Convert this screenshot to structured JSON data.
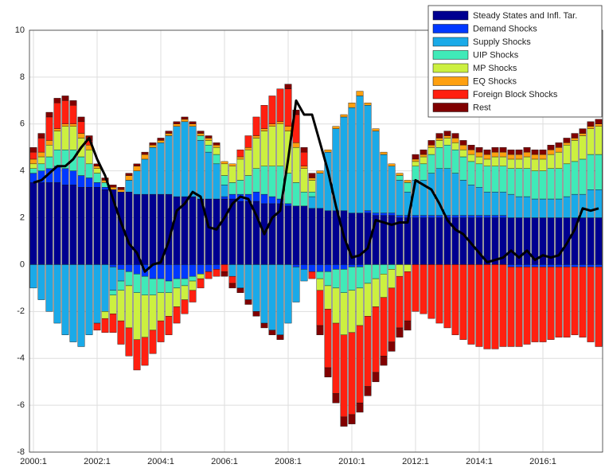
{
  "chart_data": {
    "type": "bar",
    "stacked": true,
    "categories": [
      "2000:1",
      null,
      null,
      null,
      null,
      null,
      null,
      null,
      "2002:1",
      null,
      null,
      null,
      null,
      null,
      null,
      null,
      "2004:1",
      null,
      null,
      null,
      null,
      null,
      null,
      null,
      "2006:1",
      null,
      null,
      null,
      null,
      null,
      null,
      null,
      "2008:1",
      null,
      null,
      null,
      null,
      null,
      null,
      null,
      "2010:1",
      null,
      null,
      null,
      null,
      null,
      null,
      null,
      "2012:1",
      null,
      null,
      null,
      null,
      null,
      null,
      null,
      "2014:1",
      null,
      null,
      null,
      null,
      null,
      null,
      null,
      "2016:1",
      null,
      null,
      null,
      null,
      null,
      null,
      null
    ],
    "series": [
      {
        "name": "Steady States and Infl. Tar.",
        "color": "#000090",
        "values": [
          3.5,
          3.5,
          3.5,
          3.5,
          3.4,
          3.4,
          3.3,
          3.3,
          3.3,
          3.2,
          3.2,
          3.1,
          3.1,
          3.0,
          3.0,
          3.0,
          3.0,
          3.0,
          2.9,
          2.9,
          2.9,
          2.8,
          2.8,
          2.8,
          2.8,
          2.8,
          2.7,
          2.7,
          2.7,
          2.6,
          2.6,
          2.6,
          2.5,
          2.5,
          2.5,
          2.4,
          2.4,
          2.3,
          2.3,
          2.3,
          2.2,
          2.2,
          2.2,
          2.1,
          2.1,
          2.1,
          2.0,
          2.0,
          2.0,
          2.0,
          2.0,
          2.0,
          2.0,
          2.0,
          2.0,
          2.0,
          2.0,
          2.0,
          2.0,
          2.0,
          2.0,
          2.0,
          2.0,
          2.0,
          2.0,
          2.0,
          2.0,
          2.0,
          2.0,
          2.0,
          2.0,
          2.0
        ]
      },
      {
        "name": "Demand Shocks",
        "color": "#0038ff",
        "values": [
          0.4,
          0.5,
          0.6,
          0.7,
          0.7,
          0.6,
          0.5,
          0.4,
          0.2,
          0.1,
          -0.1,
          -0.2,
          -0.3,
          -0.4,
          -0.5,
          -0.6,
          -0.6,
          -0.7,
          -0.6,
          -0.6,
          -0.5,
          -0.4,
          -0.3,
          -0.2,
          0.1,
          0.2,
          0.3,
          0.3,
          0.4,
          0.4,
          0.3,
          0.2,
          0.1,
          -0.1,
          -0.2,
          -0.3,
          -0.3,
          -0.3,
          -0.2,
          -0.2,
          -0.1,
          -0.1,
          0.1,
          0.1,
          0.1,
          0.1,
          0.1,
          0.1,
          0.1,
          0.1,
          0.1,
          0.1,
          0.1,
          0.1,
          0.1,
          0.1,
          0.1,
          0.1,
          0.1,
          0.1,
          -0.1,
          -0.1,
          -0.1,
          -0.1,
          -0.1,
          -0.1,
          -0.1,
          -0.1,
          -0.1,
          -0.1,
          -0.1,
          -0.1
        ]
      },
      {
        "name": "Supply Shocks",
        "color": "#1aaae8",
        "values": [
          -1.0,
          -1.5,
          -2.0,
          -2.5,
          -3.0,
          -3.3,
          -3.5,
          -3.0,
          -2.5,
          -2.0,
          -1.0,
          -0.5,
          0.5,
          1.0,
          1.5,
          2.0,
          2.2,
          2.5,
          3.0,
          3.2,
          3.0,
          2.5,
          2.0,
          1.5,
          0.5,
          -0.5,
          -1.0,
          -1.5,
          -2.0,
          -2.5,
          -2.8,
          -3.0,
          -2.5,
          -1.5,
          -0.5,
          0.5,
          1.5,
          2.5,
          3.5,
          4.0,
          4.5,
          5.0,
          4.5,
          3.5,
          2.5,
          2.0,
          1.5,
          1.0,
          1.5,
          1.5,
          1.8,
          2.0,
          2.0,
          1.8,
          1.5,
          1.3,
          1.2,
          1.0,
          1.0,
          1.0,
          1.0,
          0.9,
          0.9,
          0.8,
          0.8,
          0.8,
          0.8,
          0.9,
          1.0,
          1.0,
          1.2,
          1.2
        ]
      },
      {
        "name": "UIP Shocks",
        "color": "#40eab8",
        "values": [
          0.2,
          0.3,
          0.5,
          0.7,
          0.8,
          0.9,
          0.8,
          0.6,
          0.4,
          0.2,
          -0.2,
          -0.4,
          -0.6,
          -0.8,
          -0.8,
          -0.7,
          -0.6,
          -0.5,
          -0.4,
          -0.3,
          -0.2,
          0.2,
          0.3,
          0.4,
          0.4,
          0.5,
          0.6,
          0.8,
          1.0,
          1.2,
          1.3,
          1.4,
          1.3,
          1.0,
          0.6,
          0.2,
          -0.3,
          -0.6,
          -0.8,
          -1.0,
          -1.0,
          -0.9,
          -0.8,
          -0.6,
          -0.4,
          -0.2,
          0.2,
          0.4,
          0.6,
          0.7,
          0.8,
          0.9,
          1.0,
          1.0,
          1.0,
          1.0,
          1.0,
          1.1,
          1.1,
          1.1,
          1.1,
          1.2,
          1.2,
          1.2,
          1.2,
          1.3,
          1.3,
          1.4,
          1.4,
          1.5,
          1.5,
          1.5
        ]
      },
      {
        "name": "MP Shocks",
        "color": "#ccf040",
        "values": [
          0.2,
          0.3,
          0.5,
          0.8,
          1.0,
          1.0,
          0.8,
          0.6,
          0.2,
          -0.3,
          -0.8,
          -1.3,
          -1.8,
          -2.0,
          -1.8,
          -1.5,
          -1.2,
          -1.0,
          -0.8,
          -0.6,
          -0.4,
          -0.2,
          0.2,
          0.3,
          0.5,
          0.7,
          0.9,
          1.1,
          1.3,
          1.5,
          1.7,
          1.8,
          1.8,
          1.5,
          1.0,
          0.5,
          -0.5,
          -1.0,
          -1.5,
          -1.8,
          -1.8,
          -1.6,
          -1.4,
          -1.2,
          -1.0,
          -0.8,
          -0.5,
          -0.3,
          0.2,
          0.3,
          0.3,
          0.3,
          0.3,
          0.3,
          0.3,
          0.3,
          0.3,
          0.3,
          0.4,
          0.4,
          0.4,
          0.4,
          0.5,
          0.5,
          0.5,
          0.6,
          0.7,
          0.8,
          0.9,
          1.0,
          1.1,
          1.2
        ]
      },
      {
        "name": "EQ Shocks",
        "color": "#ffa010",
        "values": [
          0.2,
          0.2,
          0.2,
          0.1,
          0.1,
          0.1,
          0.2,
          0.2,
          0.1,
          0.1,
          0.1,
          0.1,
          0.2,
          0.2,
          0.2,
          0.1,
          0.1,
          0.1,
          0.1,
          0.1,
          0.1,
          0.1,
          0.1,
          0.1,
          0.1,
          0.1,
          0.1,
          0.1,
          0.1,
          0.1,
          0.1,
          0.1,
          0.2,
          0.2,
          0.1,
          0.1,
          0.1,
          0.1,
          0.1,
          0.1,
          0.2,
          0.2,
          0.1,
          0.1,
          0.1,
          0.1,
          0.1,
          0.1,
          0.1,
          0.1,
          0.1,
          0.1,
          0.1,
          0.2,
          0.2,
          0.2,
          0.2,
          0.2,
          0.2,
          0.2,
          0.2,
          0.2,
          0.2,
          0.2,
          0.2,
          0.2,
          0.2,
          0.1,
          0.1,
          0.1,
          0.1,
          0.1
        ]
      },
      {
        "name": "Foreign Block Shocks",
        "color": "#ff2010",
        "values": [
          0.3,
          0.6,
          1.0,
          1.1,
          1.0,
          0.8,
          0.5,
          0.2,
          -0.3,
          -0.6,
          -0.8,
          -1.0,
          -1.2,
          -1.3,
          -1.2,
          -1.0,
          -0.9,
          -0.8,
          -0.7,
          -0.6,
          -0.5,
          -0.4,
          -0.3,
          -0.3,
          -0.3,
          -0.3,
          0.3,
          0.5,
          0.8,
          1.0,
          1.2,
          1.4,
          1.6,
          1.2,
          0.6,
          -0.3,
          -1.5,
          -2.5,
          -3.0,
          -3.5,
          -3.5,
          -3.3,
          -3.0,
          -2.8,
          -2.5,
          -2.3,
          -2.2,
          -2.1,
          -2.0,
          -2.1,
          -2.3,
          -2.5,
          -2.7,
          -3.0,
          -3.2,
          -3.4,
          -3.5,
          -3.6,
          -3.6,
          -3.5,
          -3.4,
          -3.4,
          -3.3,
          -3.2,
          -3.2,
          -3.1,
          -3.0,
          -3.0,
          -2.9,
          -3.0,
          -3.2,
          -3.4
        ]
      },
      {
        "name": "Rest",
        "color": "#800000",
        "values": [
          0.2,
          0.2,
          0.2,
          0.2,
          0.2,
          0.2,
          0.2,
          0.2,
          0.1,
          0.1,
          0.1,
          0.1,
          0.1,
          0.1,
          0.1,
          0.1,
          0.1,
          0.1,
          0.1,
          0.1,
          0.1,
          0.1,
          0.1,
          0.1,
          -0.2,
          -0.2,
          -0.2,
          -0.2,
          -0.2,
          -0.2,
          -0.2,
          -0.2,
          0.2,
          0.2,
          0.2,
          0.2,
          -0.4,
          -0.4,
          -0.4,
          -0.4,
          -0.4,
          -0.4,
          -0.4,
          -0.4,
          -0.4,
          -0.4,
          -0.4,
          -0.4,
          0.2,
          0.2,
          0.2,
          0.2,
          0.2,
          0.2,
          0.2,
          0.2,
          0.2,
          0.2,
          0.2,
          0.2,
          0.2,
          0.2,
          0.2,
          0.2,
          0.2,
          0.2,
          0.2,
          0.2,
          0.2,
          0.2,
          0.2,
          0.2
        ]
      }
    ],
    "line": {
      "color": "#000000",
      "values": [
        3.5,
        3.6,
        3.9,
        4.2,
        4.2,
        4.5,
        5.0,
        5.4,
        4.5,
        3.8,
        2.8,
        1.8,
        0.9,
        0.5,
        -0.3,
        0.0,
        0.1,
        1.0,
        2.3,
        2.6,
        3.1,
        2.9,
        1.6,
        1.5,
        2.0,
        2.6,
        2.9,
        2.8,
        2.1,
        1.3,
        2.0,
        2.3,
        4.5,
        7.0,
        6.4,
        6.4,
        5.2,
        4.0,
        2.5,
        1.2,
        0.3,
        0.4,
        0.7,
        1.9,
        1.8,
        1.7,
        1.8,
        1.8,
        3.6,
        3.4,
        3.2,
        2.6,
        1.9,
        1.5,
        1.3,
        0.9,
        0.5,
        0.1,
        0.2,
        0.3,
        0.6,
        0.3,
        0.6,
        0.2,
        0.4,
        0.3,
        0.4,
        0.9,
        1.5,
        2.4,
        2.3,
        2.4
      ]
    },
    "ylim": [
      -8,
      10
    ],
    "yticks": [
      -8,
      -6,
      -4,
      -2,
      0,
      2,
      4,
      6,
      8,
      10
    ],
    "grid": true,
    "legend": "top-right"
  }
}
